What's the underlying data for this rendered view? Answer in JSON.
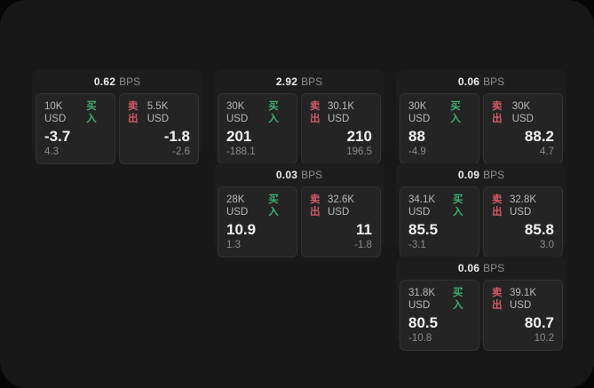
{
  "labels": {
    "buy": "买入",
    "sell": "卖出",
    "bps": "BPS"
  },
  "colors": {
    "buy": "#3fae72",
    "sell": "#d15a68",
    "surface": "#181818",
    "card": "#1d1d1d",
    "panel": "#242424"
  },
  "cards": [
    {
      "bps": "0.62",
      "col": 1,
      "buy": {
        "amount": "10K USD",
        "price": "-3.7",
        "delta": "4.3"
      },
      "sell": {
        "amount": "5.5K USD",
        "price": "-1.8",
        "delta": "-2.6"
      }
    },
    {
      "bps": "2.92",
      "col": 2,
      "buy": {
        "amount": "30K USD",
        "price": "201",
        "delta": "-188.1"
      },
      "sell": {
        "amount": "30.1K USD",
        "price": "210",
        "delta": "196.5"
      }
    },
    {
      "bps": "0.06",
      "col": 3,
      "buy": {
        "amount": "30K USD",
        "price": "88",
        "delta": "-4.9"
      },
      "sell": {
        "amount": "30K USD",
        "price": "88.2",
        "delta": "4.7"
      }
    },
    {
      "bps": "0.03",
      "col": 2,
      "buy": {
        "amount": "28K USD",
        "price": "10.9",
        "delta": "1.3"
      },
      "sell": {
        "amount": "32.6K USD",
        "price": "11",
        "delta": "-1.8"
      }
    },
    {
      "bps": "0.09",
      "col": 3,
      "buy": {
        "amount": "34.1K USD",
        "price": "85.5",
        "delta": "-3.1"
      },
      "sell": {
        "amount": "32.8K USD",
        "price": "85.8",
        "delta": "3.0"
      }
    },
    {
      "bps": "0.06",
      "col": 3,
      "buy": {
        "amount": "31.8K USD",
        "price": "80.5",
        "delta": "-10.8"
      },
      "sell": {
        "amount": "39.1K USD",
        "price": "80.7",
        "delta": "10.2"
      }
    }
  ]
}
